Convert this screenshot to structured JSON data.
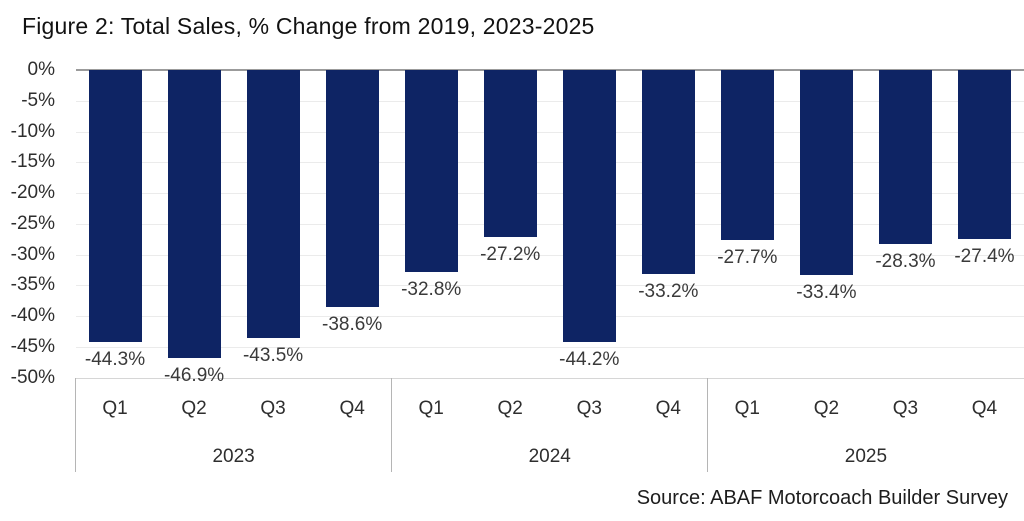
{
  "header": {
    "title": "Figure 2: Total Sales, % Change from 2019, 2023-2025"
  },
  "footer": {
    "source": "Source: ABAF Motorcoach Builder Survey"
  },
  "colors": {
    "bar": "#0e2464",
    "zero_line": "#9b9b9b",
    "gridline": "#ebebeb",
    "bottom_line": "#d6d6d6",
    "divider": "#b5b5b5",
    "text": "#2e2e2e"
  },
  "chart_data": {
    "type": "bar",
    "title": "Figure 2: Total Sales, % Change from 2019, 2023-2025",
    "xlabel": "",
    "ylabel": "",
    "unit": "%",
    "ylim": [
      -50,
      0
    ],
    "ytick_interval": 5,
    "ytick_labels": [
      "0%",
      "-5%",
      "-10%",
      "-15%",
      "-20%",
      "-25%",
      "-30%",
      "-35%",
      "-40%",
      "-45%",
      "-50%"
    ],
    "grid": true,
    "legend": false,
    "bar_color": "#0e2464",
    "groups": [
      {
        "year": "2023",
        "categories": [
          "Q1",
          "Q2",
          "Q3",
          "Q4"
        ],
        "values": [
          -44.3,
          -46.9,
          -43.5,
          -38.6
        ],
        "value_labels": [
          "-44.3%",
          "-46.9%",
          "-43.5%",
          "-38.6%"
        ]
      },
      {
        "year": "2024",
        "categories": [
          "Q1",
          "Q2",
          "Q3",
          "Q4"
        ],
        "values": [
          -32.8,
          -27.2,
          -44.2,
          -33.2
        ],
        "value_labels": [
          "-32.8%",
          "-27.2%",
          "-44.2%",
          "-33.2%"
        ]
      },
      {
        "year": "2025",
        "categories": [
          "Q1",
          "Q2",
          "Q3",
          "Q4"
        ],
        "values": [
          -27.7,
          -33.4,
          -28.3,
          -27.4
        ],
        "value_labels": [
          "-27.7%",
          "-33.4%",
          "-28.3%",
          "-27.4%"
        ]
      }
    ]
  }
}
